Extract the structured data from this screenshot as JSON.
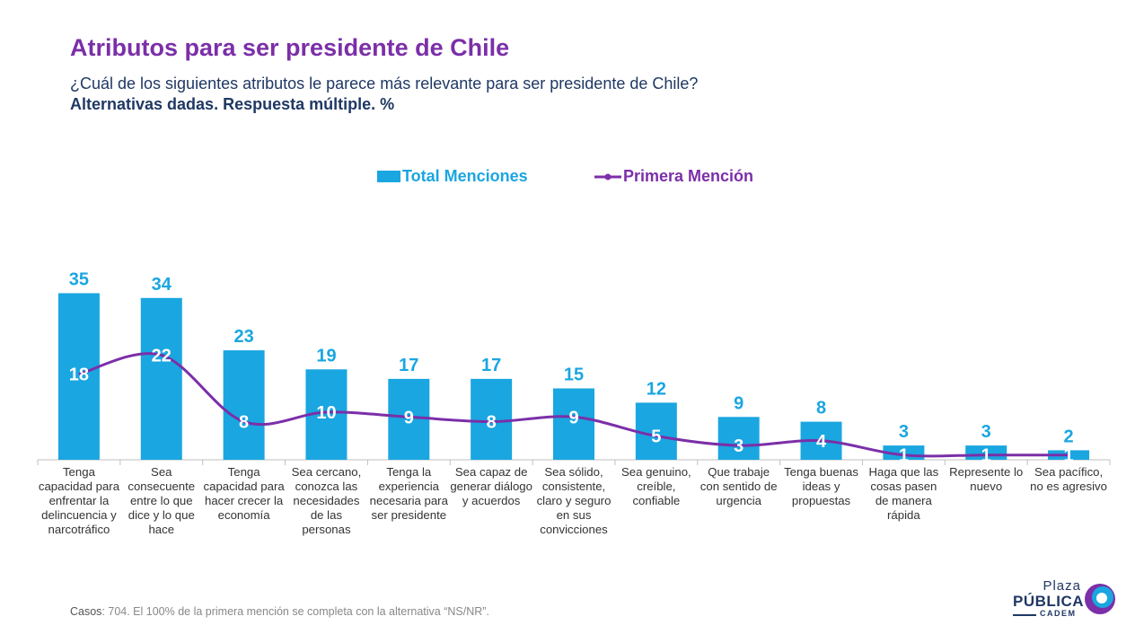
{
  "header": {
    "title": "Atributos para ser presidente de Chile",
    "subtitle": "¿Cuál de los siguientes atributos le parece más relevante para ser presidente de Chile?",
    "subtitle2": "Alternativas dadas. Respuesta múltiple. %"
  },
  "legend": {
    "bars": "Total Menciones",
    "line": "Primera Mención"
  },
  "colors": {
    "bar": "#1aa6e0",
    "line": "#7b2fa8",
    "title": "#7b2fa8",
    "text_dark": "#1f3864"
  },
  "chart_data": {
    "type": "bar",
    "categories": [
      "Tenga capacidad para enfrentar la delincuencia y narcotráfico",
      "Sea consecuente entre lo que dice y lo que hace",
      "Tenga capacidad para hacer crecer la economía",
      "Sea cercano, conozca las necesidades de las personas",
      "Tenga la experiencia necesaria para ser presidente",
      "Sea capaz de generar diálogo y acuerdos",
      "Sea sólido, consistente, claro y seguro en sus convicciones",
      "Sea genuino, creíble, confiable",
      "Que trabaje con sentido de urgencia",
      "Tenga buenas ideas y propuestas",
      "Haga que las cosas pasen de manera rápida",
      "Represente lo nuevo",
      "Sea pacífico, no es agresivo"
    ],
    "series": [
      {
        "name": "Total Menciones",
        "type": "bar",
        "values": [
          35,
          34,
          23,
          19,
          17,
          17,
          15,
          12,
          9,
          8,
          3,
          3,
          2
        ]
      },
      {
        "name": "Primera Mención",
        "type": "line",
        "values": [
          18,
          22,
          8,
          10,
          9,
          8,
          9,
          5,
          3,
          4,
          1,
          1,
          1
        ]
      }
    ],
    "title": "Atributos para ser presidente de Chile",
    "xlabel": "",
    "ylabel": "",
    "ylim": [
      0,
      35
    ],
    "legend_position": "top-center",
    "grid": false
  },
  "footnote": {
    "label": "Casos",
    "text": ": 704. El 100% de la primera mención se completa con la alternativa “NS/NR”."
  },
  "logo": {
    "line1": "Plaza",
    "line2": "PÚBLICA",
    "line3": "CADEM"
  }
}
